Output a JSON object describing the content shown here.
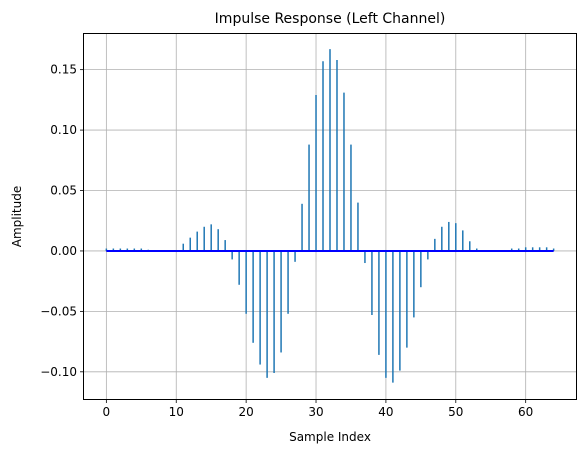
{
  "chart_data": {
    "type": "stem",
    "title": "Impulse Response (Left Channel)",
    "xlabel": "Sample Index",
    "ylabel": "Amplitude",
    "xlim": [
      -3.2,
      67.2
    ],
    "ylim": [
      -0.1225,
      0.1795
    ],
    "grid": true,
    "colors": {
      "stem": "#1f77b4",
      "baseline": "#0000ff",
      "grid": "#b0b0b0"
    },
    "x_ticks": [
      0,
      10,
      20,
      30,
      40,
      50,
      60
    ],
    "x_tick_labels": [
      "0",
      "10",
      "20",
      "30",
      "40",
      "50",
      "60"
    ],
    "y_ticks": [
      -0.1,
      -0.05,
      0.0,
      0.05,
      0.1,
      0.15
    ],
    "y_tick_labels": [
      "−0.10",
      "−0.05",
      "0.00",
      "0.05",
      "0.10",
      "0.15"
    ],
    "baseline": 0,
    "x": [
      0,
      1,
      2,
      3,
      4,
      5,
      6,
      7,
      8,
      9,
      10,
      11,
      12,
      13,
      14,
      15,
      16,
      17,
      18,
      19,
      20,
      21,
      22,
      23,
      24,
      25,
      26,
      27,
      28,
      29,
      30,
      31,
      32,
      33,
      34,
      35,
      36,
      37,
      38,
      39,
      40,
      41,
      42,
      43,
      44,
      45,
      46,
      47,
      48,
      49,
      50,
      51,
      52,
      53,
      54,
      55,
      56,
      57,
      58,
      59,
      60,
      61,
      62,
      63,
      64
    ],
    "values": [
      0.002,
      0.002,
      0.002,
      0.002,
      0.002,
      0.002,
      0.001,
      0.0,
      0.0,
      0.0,
      0.0,
      0.006,
      0.011,
      0.016,
      0.02,
      0.022,
      0.018,
      0.009,
      -0.007,
      -0.028,
      -0.052,
      -0.076,
      -0.094,
      -0.105,
      -0.101,
      -0.084,
      -0.052,
      -0.009,
      0.039,
      0.088,
      0.129,
      0.157,
      0.167,
      0.158,
      0.131,
      0.088,
      0.04,
      -0.01,
      -0.053,
      -0.086,
      -0.105,
      -0.109,
      -0.099,
      -0.08,
      -0.055,
      -0.03,
      -0.007,
      0.01,
      0.02,
      0.024,
      0.023,
      0.017,
      0.008,
      0.002,
      0.0,
      0.0,
      0.0,
      0.0,
      0.002,
      0.002,
      0.003,
      0.003,
      0.003,
      0.003,
      0.002
    ]
  }
}
